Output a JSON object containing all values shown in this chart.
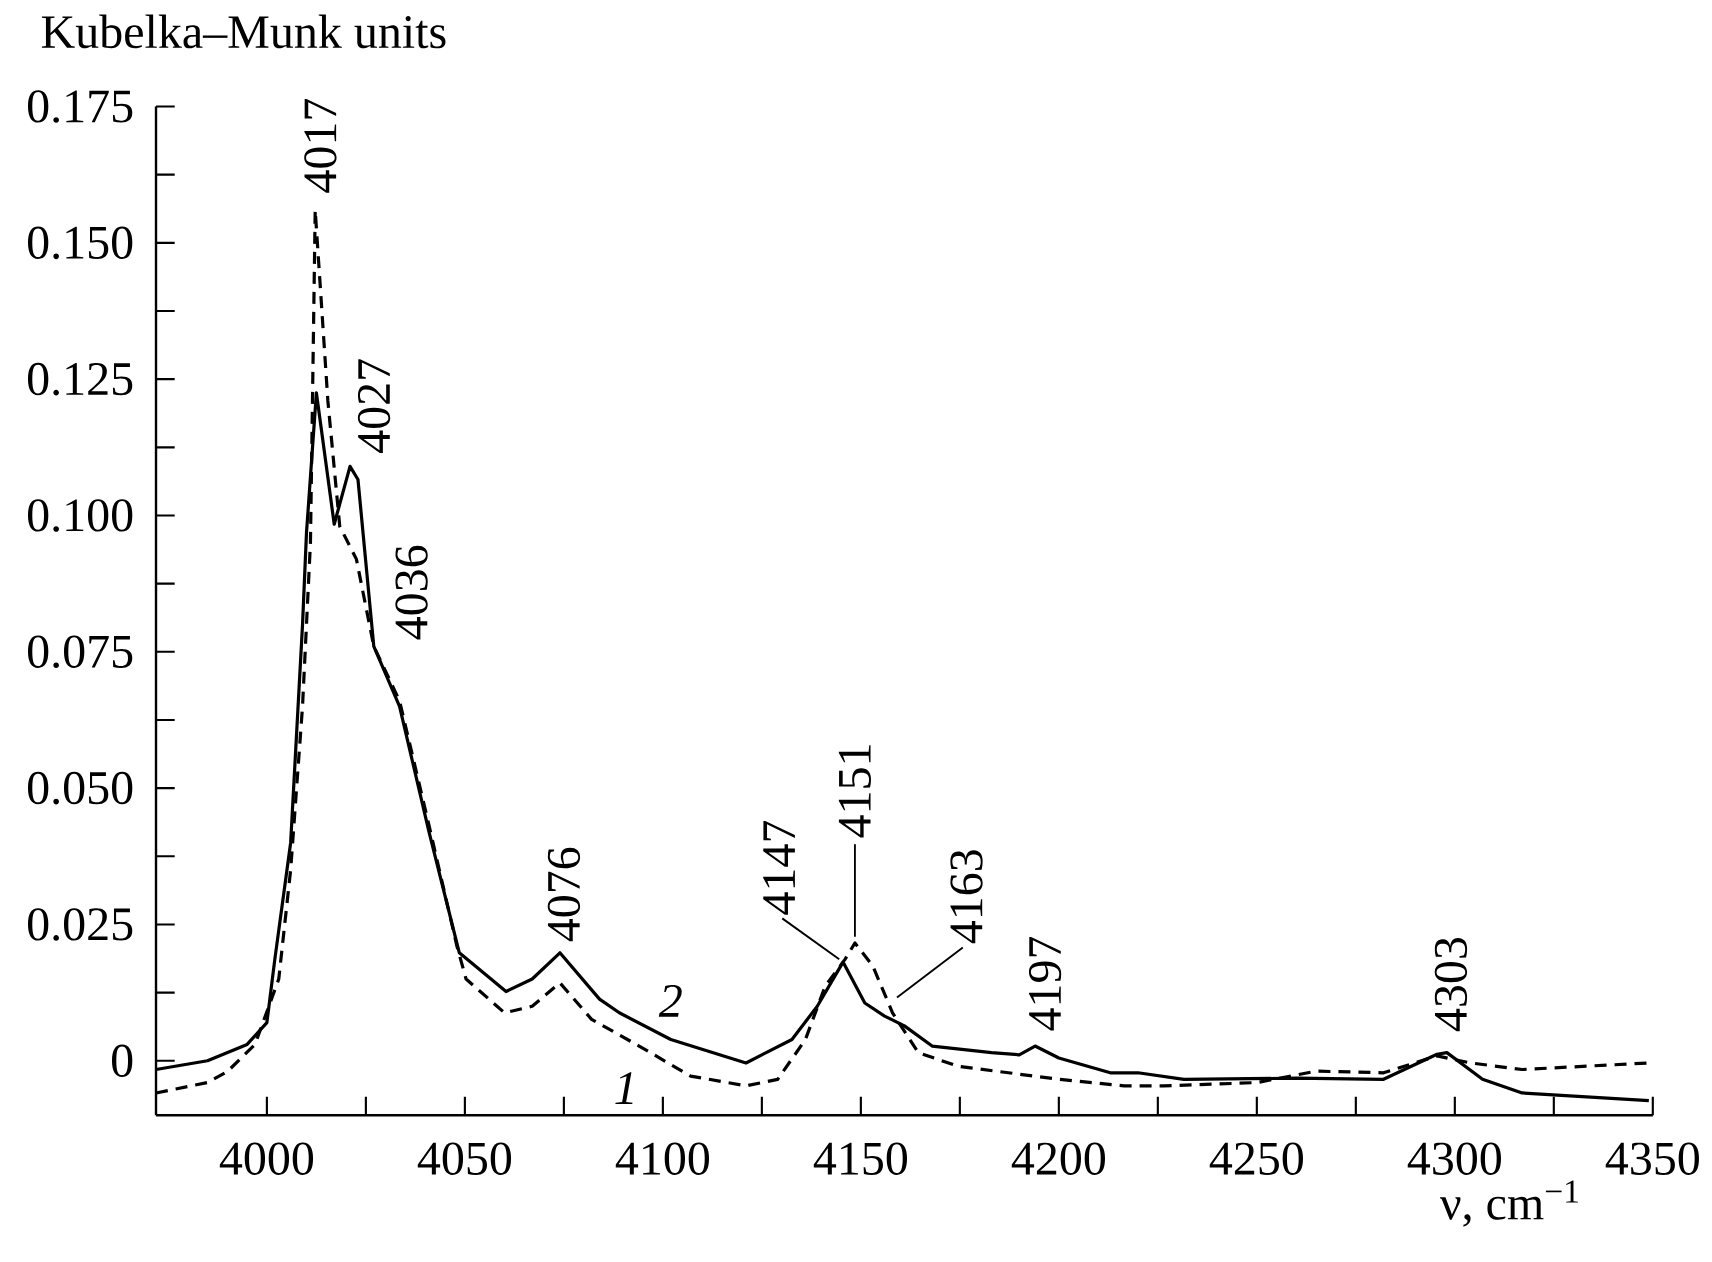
{
  "chart_data": {
    "type": "line",
    "ylabel": "Kubelka–Munk units",
    "xlabel": "ν, cm$^{−1}$",
    "xlim": [
      3972,
      4350
    ],
    "ylim": [
      -0.01,
      0.175
    ],
    "xticks": [
      4000,
      {
        "value": 4025,
        "label": null
      },
      4050,
      {
        "value": 4075,
        "label": null
      },
      4100,
      {
        "value": 4125,
        "label": null
      },
      4150,
      {
        "value": 4175,
        "label": null
      },
      4200,
      {
        "value": 4225,
        "label": null
      },
      4250,
      {
        "value": 4275,
        "label": null
      },
      4300,
      {
        "value": 4325,
        "label": null
      },
      4350
    ],
    "yticks": [
      0,
      {
        "value": 0.0125,
        "label": null
      },
      0.025,
      {
        "value": 0.0375,
        "label": null
      },
      {
        "value": 0.05,
        "label": "0.050"
      },
      {
        "value": 0.0625,
        "label": null
      },
      0.075,
      {
        "value": 0.0875,
        "label": null
      },
      {
        "value": 0.1,
        "label": "0.100"
      },
      {
        "value": 0.1125,
        "label": null
      },
      0.125,
      {
        "value": 0.1375,
        "label": null
      },
      {
        "value": 0.15,
        "label": "0.150"
      },
      {
        "value": 0.1625,
        "label": null
      },
      0.175
    ],
    "series": [
      {
        "name": "1",
        "color": "#000000",
        "line_style": "dashed",
        "x": [
          3972,
          3985,
          3990,
          3997,
          4003,
          4006,
          4009,
          4011,
          4012.2,
          4015.4,
          4018.4,
          4022.6,
          4027,
          4033.5,
          4041,
          4048,
          4050.3,
          4060,
          4067,
          4074,
          4082,
          4094,
          4107,
          4121,
          4129,
          4136,
          4141,
          4146,
          4148.5,
          4153,
          4158,
          4164.5,
          4174.5,
          4200,
          4216.5,
          4226.6,
          4250,
          4265,
          4282,
          4295.5,
          4304,
          4317,
          4349
        ],
        "values": [
          -0.0059,
          -0.004,
          -0.002,
          0.003,
          0.015,
          0.035,
          0.065,
          0.095,
          0.156,
          0.121,
          0.098,
          0.092,
          0.076,
          0.066,
          0.043,
          0.021,
          0.015,
          0.0088,
          0.01,
          0.0143,
          0.0076,
          0.0027,
          -0.0028,
          -0.0046,
          -0.0034,
          0.0039,
          0.0137,
          0.0186,
          0.0216,
          0.0174,
          0.0088,
          0.0015,
          -0.001,
          -0.0034,
          -0.0046,
          -0.0046,
          -0.004,
          -0.0019,
          -0.0022,
          0.0009,
          -0.0004,
          -0.0016,
          -0.0004
        ]
      },
      {
        "name": "2",
        "color": "#000000",
        "line_style": "solid",
        "x": [
          3972,
          3985,
          3995,
          4000,
          4002,
          4006,
          4009,
          4010,
          4012.5,
          4017,
          4021,
          4023,
          4027,
          4033.5,
          4041,
          4048.6,
          4060.4,
          4067,
          4074,
          4084,
          4089,
          4102,
          4121,
          4132.6,
          4139,
          4145.5,
          4151,
          4156,
          4161,
          4168,
          4183,
          4190,
          4194,
          4200,
          4213,
          4220,
          4231.6,
          4260,
          4282,
          4295.5,
          4298,
          4307,
          4317,
          4349
        ],
        "values": [
          -0.0016,
          0.0,
          0.003,
          0.007,
          0.0186,
          0.04,
          0.08,
          0.0968,
          0.1225,
          0.0984,
          0.109,
          0.1066,
          0.076,
          0.065,
          0.0418,
          0.0198,
          0.0127,
          0.015,
          0.0198,
          0.0113,
          0.0088,
          0.0039,
          -0.0004,
          0.0039,
          0.01,
          0.0181,
          0.0106,
          0.0082,
          0.0064,
          0.0027,
          0.0015,
          0.0011,
          0.0027,
          0.0005,
          -0.0022,
          -0.0022,
          -0.0034,
          -0.0032,
          -0.0034,
          0.0012,
          0.0015,
          -0.0034,
          -0.0059,
          -0.0073
        ]
      }
    ],
    "annotations": [
      {
        "text": "4017",
        "x": 4012.5,
        "y": 0.156
      },
      {
        "text": "4027",
        "x": 4021,
        "y": 0.109
      },
      {
        "text": "4036",
        "x": 4033.5,
        "y": 0.066
      },
      {
        "text": "4076",
        "x": 4074,
        "y": 0.0198
      },
      {
        "text": "4147",
        "x": 4145.5,
        "y": 0.0181
      },
      {
        "text": "4151",
        "x": 4148.5,
        "y": 0.0216
      },
      {
        "text": "4163",
        "x": 4158,
        "y": 0.011
      },
      {
        "text": "4197",
        "x": 4194,
        "y": 0.0027
      },
      {
        "text": "4303",
        "x": 4298,
        "y": 0.0015
      }
    ]
  }
}
